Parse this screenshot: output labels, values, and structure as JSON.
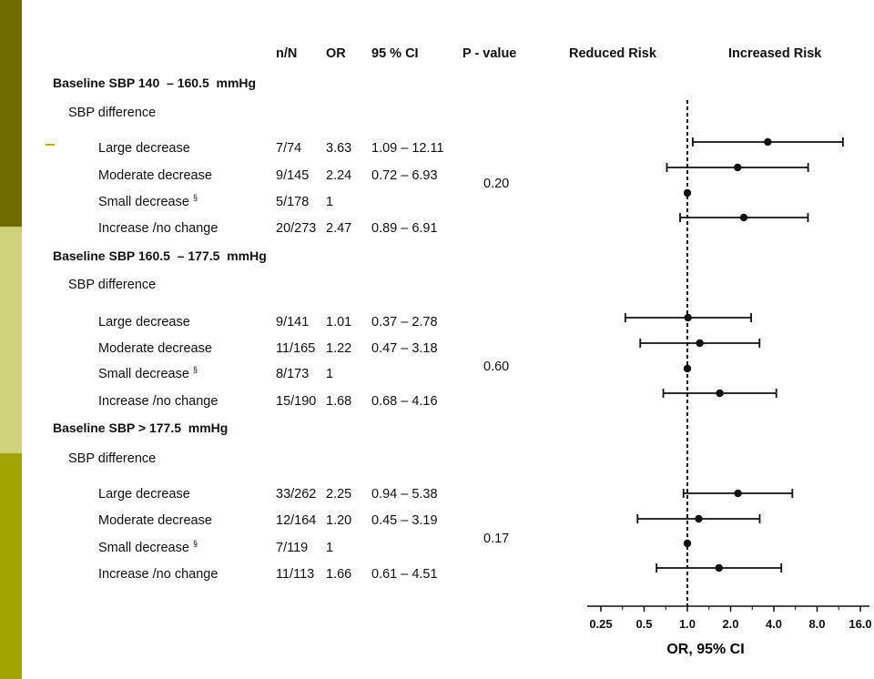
{
  "colors": {
    "stripe_top": "#6b6b00",
    "stripe_mid": "#cfd27a",
    "stripe_bottom": "#a3a300",
    "accent_dash": "#b5b500",
    "ink": "#111111"
  },
  "headers": {
    "nN": "n/N",
    "or": "OR",
    "ci": "95 % CI",
    "p": "P - value",
    "reduced": "Reduced Risk",
    "increased": "Increased Risk"
  },
  "groups": [
    {
      "title": "Baseline SBP 140  – 160.5  mmHg",
      "subtitle": "SBP difference",
      "p_value": "0.20",
      "rows": [
        {
          "label": "Large decrease",
          "sup": "",
          "nN": "7/74",
          "or": "3.63",
          "ci": "1.09 – 12.11"
        },
        {
          "label": "Moderate decrease",
          "sup": "",
          "nN": "9/145",
          "or": "2.24",
          "ci": "0.72 – 6.93"
        },
        {
          "label": "Small decrease",
          "sup": "§",
          "nN": "5/178",
          "or": "1",
          "ci": ""
        },
        {
          "label": "Increase /no change",
          "sup": "",
          "nN": "20/273",
          "or": "2.47",
          "ci": "0.89 – 6.91"
        }
      ]
    },
    {
      "title": "Baseline SBP 160.5  – 177.5  mmHg",
      "subtitle": "SBP difference",
      "p_value": "0.60",
      "rows": [
        {
          "label": "Large decrease",
          "sup": "",
          "nN": "9/141",
          "or": "1.01",
          "ci": "0.37 – 2.78"
        },
        {
          "label": "Moderate decrease",
          "sup": "",
          "nN": "11/165",
          "or": "1.22",
          "ci": "0.47 – 3.18"
        },
        {
          "label": "Small decrease",
          "sup": "§",
          "nN": "8/173",
          "or": "1",
          "ci": ""
        },
        {
          "label": "Increase /no change",
          "sup": "",
          "nN": "15/190",
          "or": "1.68",
          "ci": "0.68 – 4.16"
        }
      ]
    },
    {
      "title": "Baseline SBP > 177.5  mmHg",
      "subtitle": "SBP difference",
      "p_value": "0.17",
      "rows": [
        {
          "label": "Large decrease",
          "sup": "",
          "nN": "33/262",
          "or": "2.25",
          "ci": "0.94 – 5.38"
        },
        {
          "label": "Moderate decrease",
          "sup": "",
          "nN": "12/164",
          "or": "1.20",
          "ci": "0.45 – 3.19"
        },
        {
          "label": "Small decrease",
          "sup": "§",
          "nN": "7/119",
          "or": "1",
          "ci": ""
        },
        {
          "label": "Increase /no change",
          "sup": "",
          "nN": "11/113",
          "or": "1.66",
          "ci": "0.61 – 4.51"
        }
      ]
    }
  ],
  "chart_data": {
    "type": "forest",
    "xscale": "log2",
    "xlim": [
      0.25,
      16.0
    ],
    "reference_line": 1.0,
    "xlabel": "OR, 95% CI",
    "xticks": [
      0.25,
      0.5,
      1.0,
      2.0,
      4.0,
      8.0,
      16.0
    ],
    "xtick_labels": [
      "0.25",
      "0.5",
      "1.0",
      "2.0",
      "4.0",
      "8.0",
      "16.0"
    ],
    "points": [
      {
        "group": 0,
        "row": 0,
        "or": 3.63,
        "lo": 1.09,
        "hi": 12.11
      },
      {
        "group": 0,
        "row": 1,
        "or": 2.24,
        "lo": 0.72,
        "hi": 6.93
      },
      {
        "group": 0,
        "row": 2,
        "or": 1.0,
        "lo": null,
        "hi": null
      },
      {
        "group": 0,
        "row": 3,
        "or": 2.47,
        "lo": 0.89,
        "hi": 6.91
      },
      {
        "group": 1,
        "row": 0,
        "or": 1.01,
        "lo": 0.37,
        "hi": 2.78
      },
      {
        "group": 1,
        "row": 1,
        "or": 1.22,
        "lo": 0.47,
        "hi": 3.18
      },
      {
        "group": 1,
        "row": 2,
        "or": 1.0,
        "lo": null,
        "hi": null
      },
      {
        "group": 1,
        "row": 3,
        "or": 1.68,
        "lo": 0.68,
        "hi": 4.16
      },
      {
        "group": 2,
        "row": 0,
        "or": 2.25,
        "lo": 0.94,
        "hi": 5.38
      },
      {
        "group": 2,
        "row": 1,
        "or": 1.2,
        "lo": 0.45,
        "hi": 3.19
      },
      {
        "group": 2,
        "row": 2,
        "or": 1.0,
        "lo": null,
        "hi": null
      },
      {
        "group": 2,
        "row": 3,
        "or": 1.66,
        "lo": 0.61,
        "hi": 4.51
      }
    ]
  }
}
